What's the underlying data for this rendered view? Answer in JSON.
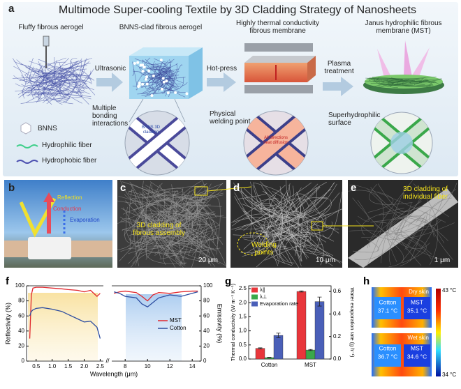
{
  "panel_a": {
    "label": "a",
    "title": "Multimode Super-cooling Textile by 3D Cladding Strategy of Nanosheets",
    "steps": [
      "Fluffy fibrous aerogel",
      "BNNS-clad fibrous aerogel",
      "Highly thermal conductivity fibrous membrane",
      "Janus hydrophilic fibrous membrane (MST)"
    ],
    "processes": [
      "Ultrasonic",
      "Hot-press",
      "Plasma treatment"
    ],
    "callouts": [
      "Multiple bonding interactions",
      "Physical welding point",
      "Superhydrophilic surface"
    ],
    "insets": [
      "BNNS 3D cladding",
      "All directions heat diffusion"
    ],
    "legend": [
      "BNNS",
      "Hydrophilic fiber",
      "Hydrophobic fiber"
    ]
  },
  "panel_b": {
    "label": "b",
    "labels": [
      "Reflection",
      "Conduction",
      "Evaporation"
    ]
  },
  "panel_c": {
    "label": "c",
    "caption": "3D cladding of fibrous assembly",
    "scale_bar": "20 μm"
  },
  "panel_d": {
    "label": "d",
    "caption": "Welding points",
    "scale_bar": "10 μm"
  },
  "panel_e": {
    "label": "e",
    "caption": "3D cladding of individual fiber",
    "scale_bar": "1 μm"
  },
  "chart_data": [
    {
      "type": "line",
      "panel_label": "f",
      "xlabel": "Wavelength (μm)",
      "ylabel": "Reflectivity (%)",
      "y2label": "Emissivity (%)",
      "x_segments": [
        {
          "xlim": [
            0.2,
            2.6
          ],
          "xticks": [
            0.5,
            {
              "value": 1,
              "label": "1.0"
            },
            1.5,
            {
              "value": 2,
              "label": "2.0"
            },
            2.5
          ],
          "axis": "y"
        },
        {
          "xlim": [
            6.8,
            14.8
          ],
          "xticks": [
            8,
            10,
            12,
            14
          ],
          "axis": "y2"
        }
      ],
      "ylim": [
        0,
        100
      ],
      "yticks": [
        0,
        20,
        40,
        60,
        80,
        100
      ],
      "y2lim": [
        0,
        100
      ],
      "y2ticks": [
        0,
        20,
        40,
        60,
        80,
        100
      ],
      "x": [
        0.3,
        0.35,
        0.4,
        0.5,
        0.7,
        1.0,
        1.3,
        1.5,
        1.8,
        2.0,
        2.2,
        2.4,
        2.5,
        null,
        7,
        7.5,
        8,
        9,
        9.5,
        10,
        10.5,
        11,
        12,
        13,
        14,
        14.5
      ],
      "series": [
        {
          "name": "MST",
          "color": "#e0262c",
          "values": [
            30,
            88,
            97,
            98,
            98,
            97,
            96,
            95,
            94,
            92,
            94,
            86,
            90,
            null,
            90,
            92,
            93,
            91,
            86,
            80,
            88,
            91,
            90,
            92,
            93,
            93
          ]
        },
        {
          "name": "Cotton",
          "color": "#2d4da0",
          "values": [
            60,
            66,
            68,
            70,
            71,
            69,
            66,
            62,
            56,
            52,
            53,
            45,
            30,
            null,
            92,
            90,
            86,
            84,
            76,
            72,
            78,
            84,
            88,
            86,
            90,
            92
          ]
        }
      ],
      "legend": "center-right"
    },
    {
      "type": "bar",
      "panel_label": "g",
      "categories": [
        "Cotton",
        "MST"
      ],
      "ylabel": "Thermal conductivity (W m⁻¹ K⁻¹)",
      "y2label": "Water evaporation rate (g h⁻¹)",
      "ylim": [
        0,
        2.6
      ],
      "yticks": [
        {
          "value": 0,
          "label": "0.0"
        },
        0.5,
        {
          "value": 1,
          "label": "1.0"
        },
        1.5,
        {
          "value": 2,
          "label": "2.0"
        },
        2.5
      ],
      "y2lim": [
        0,
        0.65
      ],
      "y2ticks": [
        {
          "value": 0,
          "label": "0.0"
        },
        0.2,
        0.4,
        0.6
      ],
      "series": [
        {
          "name": "λ∥",
          "color": "#e8363b",
          "values": [
            0.38,
            2.4
          ],
          "errors": [
            0.02,
            0.02
          ]
        },
        {
          "name": "λ⊥",
          "color": "#3aa84a",
          "values": [
            0.05,
            0.32
          ],
          "errors": [
            0.01,
            0.02
          ]
        },
        {
          "name": "Evaporation rate",
          "color": "#4a5fb8",
          "values": [
            0.21,
            0.51
          ],
          "errors": [
            0.02,
            0.04
          ],
          "axis": "y2"
        }
      ],
      "legend": "upper left"
    }
  ],
  "panel_h": {
    "label": "h",
    "rows": [
      {
        "condition": "Dry skin",
        "cotton": "Cotton",
        "cotton_temp": "37.1 °C",
        "mst": "MST",
        "mst_temp": "35.1 °C"
      },
      {
        "condition": "Wet skin",
        "cotton": "Cotton",
        "cotton_temp": "36.7 °C",
        "mst": "MST",
        "mst_temp": "34.6 °C"
      }
    ],
    "colorbar": [
      "43 °C",
      "34 °C"
    ]
  }
}
